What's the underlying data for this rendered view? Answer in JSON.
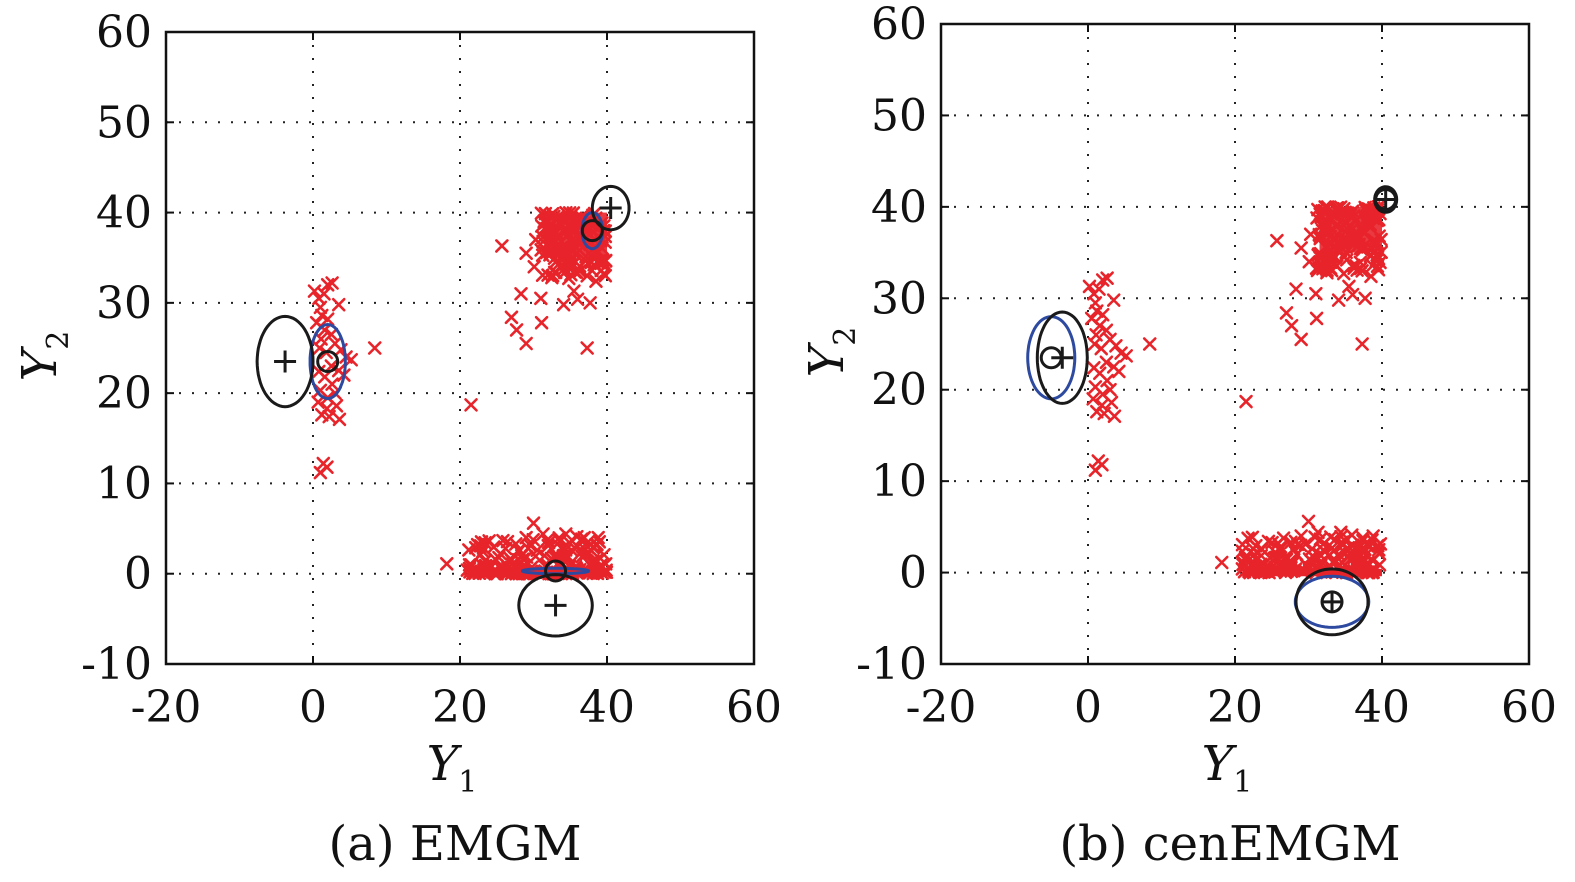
{
  "chart_data": [
    {
      "type": "scatter",
      "caption": "(a) EMGM",
      "xlabel": "Y",
      "xlabel_sub": "1",
      "ylabel": "Y",
      "ylabel_sub": "2",
      "xlim": [
        -20,
        60
      ],
      "ylim": [
        -10,
        60
      ],
      "xticks": [
        -20,
        0,
        20,
        40,
        60
      ],
      "yticks": [
        -10,
        0,
        10,
        20,
        30,
        40,
        50,
        60
      ],
      "xtick_labels": [
        "-20",
        "0",
        "20",
        "40",
        "60"
      ],
      "ytick_labels": [
        "-10",
        "0",
        "10",
        "20",
        "30",
        "40",
        "50",
        "60"
      ],
      "grid": "dotted",
      "colors": {
        "points": "#e8242b",
        "estimated": "#1a1a1a",
        "true": "#2d4aa0"
      },
      "components": [
        {
          "estimated_mean": [
            -3.8,
            23.5
          ],
          "estimated_radii": [
            3.8,
            5.0
          ],
          "true_mean": [
            2.0,
            23.5
          ],
          "true_radii": [
            2.4,
            4.1
          ]
        },
        {
          "estimated_mean": [
            33.0,
            -3.5
          ],
          "estimated_radii": [
            5.0,
            3.4
          ],
          "true_mean": [
            33.0,
            0.3
          ],
          "true_radii": [
            4.5,
            0.3
          ]
        },
        {
          "estimated_mean": [
            40.5,
            40.5
          ],
          "estimated_radii": [
            2.5,
            2.4
          ],
          "true_mean": [
            38.0,
            38.0
          ],
          "true_radii": [
            1.4,
            2.0
          ]
        }
      ]
    },
    {
      "type": "scatter",
      "caption": "(b) cenEMGM",
      "xlabel": "Y",
      "xlabel_sub": "1",
      "ylabel": "Y",
      "ylabel_sub": "2",
      "xlim": [
        -20,
        60
      ],
      "ylim": [
        -10,
        60
      ],
      "xticks": [
        -20,
        0,
        20,
        40,
        60
      ],
      "yticks": [
        -10,
        0,
        10,
        20,
        30,
        40,
        50,
        60
      ],
      "xtick_labels": [
        "-20",
        "0",
        "20",
        "40",
        "60"
      ],
      "ytick_labels": [
        "-10",
        "0",
        "10",
        "20",
        "30",
        "40",
        "50",
        "60"
      ],
      "grid": "dotted",
      "colors": {
        "points": "#e8242b",
        "estimated": "#1a1a1a",
        "true": "#2d4aa0"
      },
      "components": [
        {
          "estimated_mean": [
            -3.5,
            23.5
          ],
          "estimated_radii": [
            3.4,
            5.0
          ],
          "true_mean": [
            -5.0,
            23.5
          ],
          "true_radii": [
            3.2,
            4.5
          ]
        },
        {
          "estimated_mean": [
            33.2,
            -3.2
          ],
          "estimated_radii": [
            4.9,
            3.6
          ],
          "true_mean": [
            33.2,
            -3.2
          ],
          "true_radii": [
            5.0,
            2.8
          ]
        },
        {
          "estimated_mean": [
            40.5,
            40.8
          ],
          "estimated_radii": [
            1.5,
            1.4
          ],
          "true_mean": [
            40.5,
            40.8
          ],
          "true_radii": [
            1.4,
            1.3
          ]
        }
      ]
    }
  ],
  "observed_points": {
    "marker": "x",
    "left_cluster": [
      [
        0.2,
        31.3
      ],
      [
        0.8,
        30.5
      ],
      [
        1.5,
        31.0
      ],
      [
        2.0,
        32.0
      ],
      [
        1.0,
        29.5
      ],
      [
        2.6,
        32.2
      ],
      [
        1.2,
        28.6
      ],
      [
        0.5,
        27.8
      ],
      [
        2.0,
        28.2
      ],
      [
        1.6,
        27.0
      ],
      [
        3.5,
        29.8
      ],
      [
        1.1,
        26.0
      ],
      [
        2.5,
        26.5
      ],
      [
        0.9,
        25.0
      ],
      [
        3.0,
        25.5
      ],
      [
        1.8,
        24.5
      ],
      [
        4.5,
        24.0
      ],
      [
        3.8,
        24.8
      ],
      [
        5.2,
        23.7
      ],
      [
        2.5,
        23.0
      ],
      [
        8.4,
        25.0
      ],
      [
        3.5,
        22.5
      ],
      [
        0.8,
        22.4
      ],
      [
        1.6,
        21.8
      ],
      [
        2.6,
        21.0
      ],
      [
        4.2,
        22.0
      ],
      [
        1.0,
        20.3
      ],
      [
        2.0,
        19.5
      ],
      [
        3.0,
        20.0
      ],
      [
        0.7,
        19.0
      ],
      [
        1.9,
        18.3
      ],
      [
        3.2,
        18.6
      ],
      [
        1.2,
        17.6
      ],
      [
        2.2,
        17.4
      ],
      [
        3.6,
        17.1
      ],
      [
        1.4,
        12.2
      ],
      [
        1.0,
        11.2
      ],
      [
        1.9,
        11.8
      ]
    ],
    "top_cluster": [
      [
        25.7,
        36.3
      ],
      [
        30.3,
        37.0
      ],
      [
        29.0,
        35.5
      ],
      [
        30.1,
        34.0
      ],
      [
        28.3,
        31.0
      ],
      [
        27.0,
        28.4
      ],
      [
        27.7,
        27.0
      ],
      [
        29.0,
        25.5
      ],
      [
        31.1,
        27.8
      ],
      [
        31.0,
        30.5
      ],
      [
        32.5,
        32.8
      ],
      [
        33.0,
        34.5
      ],
      [
        32.3,
        35.6
      ],
      [
        33.4,
        36.5
      ],
      [
        34.1,
        29.8
      ],
      [
        35.5,
        31.3
      ],
      [
        36.0,
        30.4
      ],
      [
        37.7,
        30.0
      ],
      [
        34.8,
        32.7
      ],
      [
        35.2,
        34.2
      ],
      [
        36.3,
        33.5
      ],
      [
        37.3,
        33.0
      ],
      [
        38.5,
        32.4
      ],
      [
        39.4,
        34.5
      ],
      [
        34.0,
        38.0
      ],
      [
        35.0,
        39.4
      ],
      [
        31.8,
        39.0
      ],
      [
        36.5,
        36.8
      ],
      [
        37.3,
        25.0
      ],
      [
        21.5,
        18.7
      ]
    ],
    "bottom_cluster": [
      [
        18.2,
        1.1
      ],
      [
        21.0,
        0.4
      ],
      [
        23.5,
        0.9
      ],
      [
        24.8,
        1.6
      ],
      [
        25.5,
        2.2
      ],
      [
        26.2,
        2.8
      ],
      [
        27.0,
        1.5
      ],
      [
        27.6,
        3.3
      ],
      [
        28.4,
        2.0
      ],
      [
        29.0,
        4.0
      ],
      [
        29.6,
        3.1
      ],
      [
        30.0,
        5.6
      ],
      [
        30.5,
        2.6
      ],
      [
        31.3,
        4.4
      ],
      [
        32.0,
        3.1
      ],
      [
        32.8,
        1.9
      ],
      [
        33.6,
        3.6
      ],
      [
        34.4,
        4.4
      ],
      [
        35.2,
        2.6
      ],
      [
        35.9,
        4.1
      ],
      [
        36.6,
        1.9
      ],
      [
        37.4,
        3.5
      ],
      [
        38.1,
        2.9
      ],
      [
        38.8,
        4.0
      ],
      [
        39.6,
        2.1
      ],
      [
        28.0,
        2.6
      ],
      [
        31.5,
        2.0
      ],
      [
        34.1,
        2.0
      ],
      [
        36.0,
        3.0
      ]
    ],
    "censoring_bounds": {
      "top_block": {
        "x": [
          30,
          40
        ],
        "y": [
          30,
          40
        ]
      },
      "bottom_block": {
        "x": [
          21,
          40
        ],
        "y": [
          0,
          4
        ]
      }
    }
  }
}
